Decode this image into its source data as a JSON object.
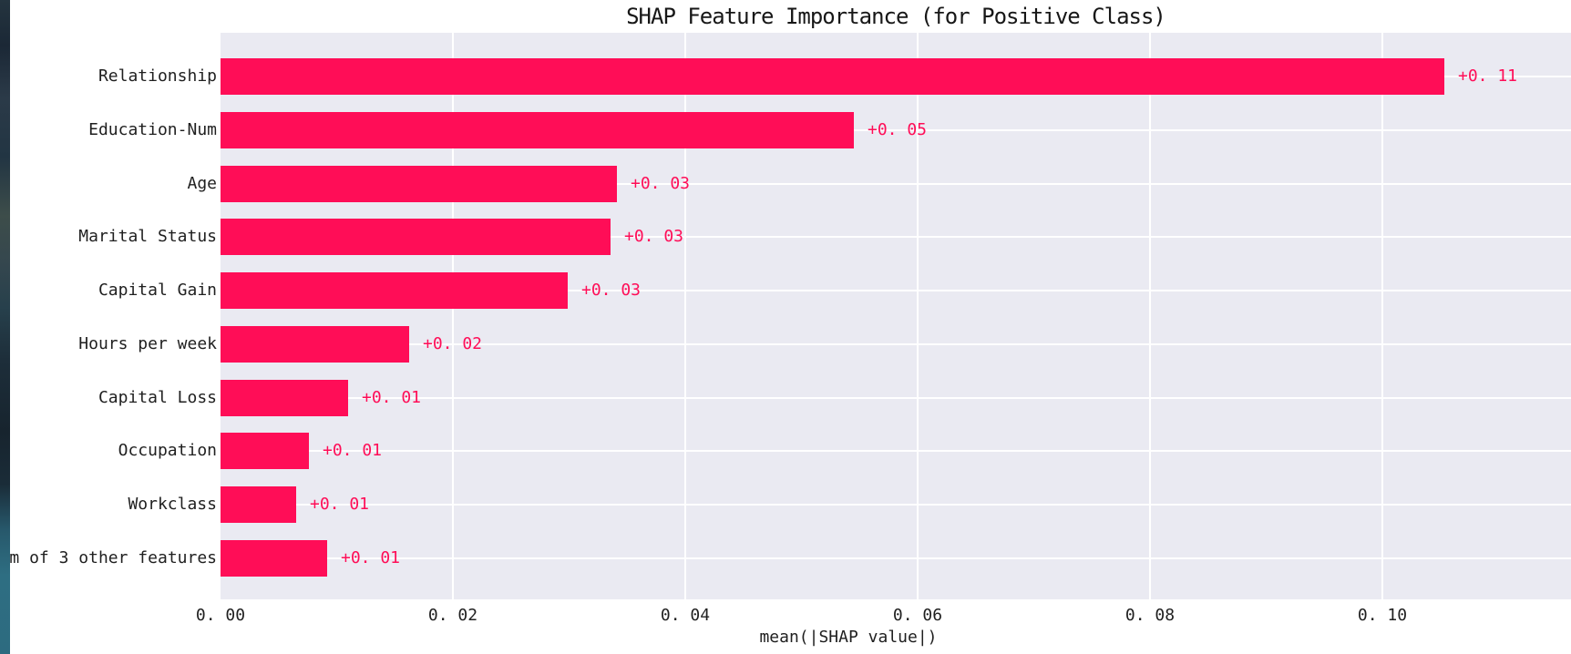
{
  "decor": {
    "edge_strip_colors": [
      "#1b2836",
      "#3d4d4a",
      "#17242e",
      "#2e6e82"
    ]
  },
  "chart_data": {
    "type": "bar",
    "orientation": "horizontal",
    "title": "SHAP Feature Importance (for Positive Class)",
    "xlabel": "mean(|SHAP value|)",
    "ylabel": "",
    "categories": [
      "Relationship",
      "Education-Num",
      "Age",
      "Marital Status",
      "Capital Gain",
      "Hours per week",
      "Capital Loss",
      "Occupation",
      "Workclass",
      "m of 3 other features"
    ],
    "values": [
      0.1053,
      0.0545,
      0.0341,
      0.0336,
      0.0299,
      0.0162,
      0.011,
      0.0076,
      0.0065,
      0.0092
    ],
    "bar_labels": [
      "+0. 11",
      "+0. 05",
      "+0. 03",
      "+0. 03",
      "+0. 03",
      "+0. 02",
      "+0. 01",
      "+0. 01",
      "+0. 01",
      "+0. 01"
    ],
    "x_tick_values": [
      0.0,
      0.02,
      0.04,
      0.06,
      0.08,
      0.1
    ],
    "x_tick_labels": [
      "0. 00",
      "0. 02",
      "0. 04",
      "0. 06",
      "0. 08",
      "0. 10"
    ],
    "xlim": [
      0,
      0.1163
    ],
    "grid": true,
    "legend": null,
    "bar_color": "#ff0d57",
    "value_label_color": "#ff0d57",
    "plot_bg_color": "#eaeaf2",
    "grid_color": "#ffffff",
    "text_color": "#1f1f1f"
  }
}
